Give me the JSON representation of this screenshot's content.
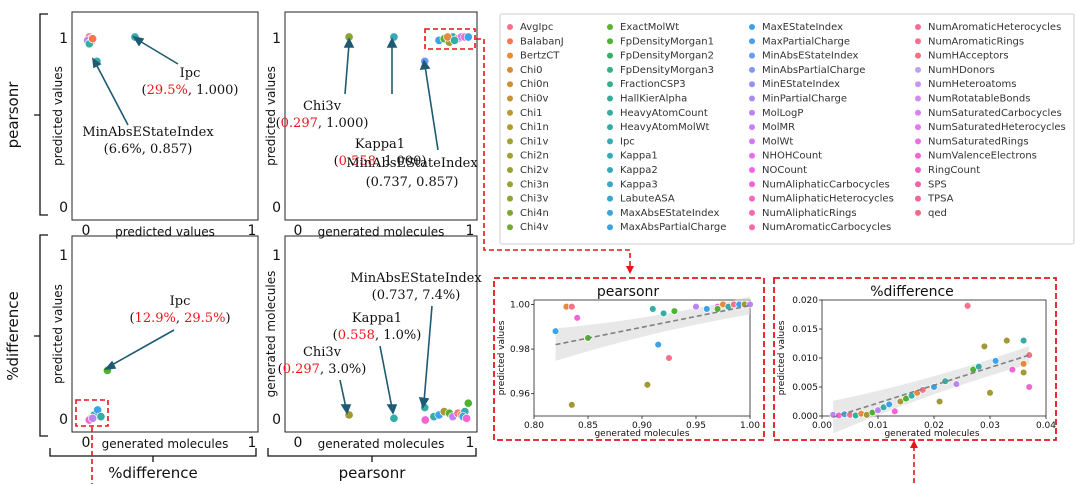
{
  "groups": {
    "row1": "pearsonr",
    "row2": "%difference",
    "col1": "%difference",
    "col2": "pearsonr"
  },
  "colors": {
    "pink": "#f77189",
    "coral": "#e68a3e",
    "olive": "#a39934",
    "green": "#50b131",
    "teal": "#36ada4",
    "blue": "#3ba3ec",
    "purple": "#bb83f4",
    "magenta": "#f564d4",
    "dark_arrow": "#1e5b73",
    "highlight": "#e8141b"
  },
  "legend": {
    "items": [
      {
        "label": "AvgIpc",
        "color": "#f77189"
      },
      {
        "label": "BalabanJ",
        "color": "#f7754f"
      },
      {
        "label": "BertzCT",
        "color": "#e78d31"
      },
      {
        "label": "Chi0",
        "color": "#dc8932"
      },
      {
        "label": "Chi0n",
        "color": "#d08f32"
      },
      {
        "label": "Chi0v",
        "color": "#c59433"
      },
      {
        "label": "Chi1",
        "color": "#bb9832"
      },
      {
        "label": "Chi1n",
        "color": "#b19c32"
      },
      {
        "label": "Chi1v",
        "color": "#a69f32"
      },
      {
        "label": "Chi2n",
        "color": "#a69f32"
      },
      {
        "label": "Chi2v",
        "color": "#9ba131"
      },
      {
        "label": "Chi3n",
        "color": "#9aa231"
      },
      {
        "label": "Chi3v",
        "color": "#8ea531"
      },
      {
        "label": "Chi4n",
        "color": "#80a831"
      },
      {
        "label": "Chi4v",
        "color": "#6fac31"
      },
      {
        "label": "ExactMolWt",
        "color": "#5cb231"
      },
      {
        "label": "FpDensityMorgan1",
        "color": "#4cb331"
      },
      {
        "label": "FpDensityMorgan2",
        "color": "#32b166"
      },
      {
        "label": "FpDensityMorgan3",
        "color": "#34af7d"
      },
      {
        "label": "FractionCSP3",
        "color": "#35ae8c"
      },
      {
        "label": "HallKierAlpha",
        "color": "#35ad96"
      },
      {
        "label": "HeavyAtomCount",
        "color": "#36ac9f"
      },
      {
        "label": "HeavyAtomMolWt",
        "color": "#36aba7"
      },
      {
        "label": "Ipc",
        "color": "#37abaf"
      },
      {
        "label": "Kappa1",
        "color": "#37aab6"
      },
      {
        "label": "Kappa2",
        "color": "#38a9be"
      },
      {
        "label": "Kappa3",
        "color": "#38a8c5"
      },
      {
        "label": "LabuteASA",
        "color": "#39a7cc"
      },
      {
        "label": "MaxAbsEStateIndex",
        "color": "#3aa5d5"
      },
      {
        "label": "MaxAbsPartialCharge",
        "color": "#3ba3df"
      },
      {
        "label": "MaxEStateIndex",
        "color": "#3ca1e8"
      },
      {
        "label": "MaxPartialCharge",
        "color": "#4a9ff2"
      },
      {
        "label": "MinAbsEStateIndex",
        "color": "#6a9bf4"
      },
      {
        "label": "MinAbsPartialCharge",
        "color": "#8297f4"
      },
      {
        "label": "MinEStateIndex",
        "color": "#9692f4"
      },
      {
        "label": "MinPartialCharge",
        "color": "#a78cf4"
      },
      {
        "label": "MolLogP",
        "color": "#b886f4"
      },
      {
        "label": "MolMR",
        "color": "#c880f4"
      },
      {
        "label": "MolWt",
        "color": "#d879f3"
      },
      {
        "label": "NHOHCount",
        "color": "#e670f2"
      },
      {
        "label": "NOCount",
        "color": "#f366e7"
      },
      {
        "label": "NumAliphaticCarbocycles",
        "color": "#f564d4"
      },
      {
        "label": "NumAliphaticHeterocycles",
        "color": "#f566c3"
      },
      {
        "label": "NumAliphaticRings",
        "color": "#f668b4"
      },
      {
        "label": "NumAromaticCarbocycles",
        "color": "#f66aa6"
      },
      {
        "label": "NumAromaticHeterocycles",
        "color": "#f66c99"
      },
      {
        "label": "NumAromaticRings",
        "color": "#f66e8c"
      },
      {
        "label": "NumHAcceptors",
        "color": "#f77080"
      },
      {
        "label": "NumHDonors",
        "color": "#c0a0f4"
      },
      {
        "label": "NumHeteroatoms",
        "color": "#c896f4"
      },
      {
        "label": "NumRotatableBonds",
        "color": "#d08cf4"
      },
      {
        "label": "NumSaturatedCarbocycles",
        "color": "#d982f4"
      },
      {
        "label": "NumSaturatedHeterocycles",
        "color": "#e278f2"
      },
      {
        "label": "NumSaturatedRings",
        "color": "#ea6ee7"
      },
      {
        "label": "NumValenceElectrons",
        "color": "#f064d6"
      },
      {
        "label": "RingCount",
        "color": "#f35fc3"
      },
      {
        "label": "SPS",
        "color": "#f55fae"
      },
      {
        "label": "TPSA",
        "color": "#f6619a"
      },
      {
        "label": "qed",
        "color": "#f76785"
      }
    ]
  },
  "chart_data": [
    {
      "id": "p1",
      "type": "scatter",
      "xlabel": "predicted values",
      "ylabel": "predicted values",
      "xlim": [
        0,
        1
      ],
      "ylim": [
        0,
        1
      ],
      "xticks": [
        "0",
        "1"
      ],
      "yticks": [
        "0",
        "1"
      ],
      "points": [
        {
          "x": 0.02,
          "y": 1.0,
          "color": "#f77189"
        },
        {
          "x": 0.03,
          "y": 0.99,
          "color": "#f564d4"
        },
        {
          "x": 0.01,
          "y": 0.98,
          "color": "#bb83f4"
        },
        {
          "x": 0.03,
          "y": 0.97,
          "color": "#a39934"
        },
        {
          "x": 0.02,
          "y": 0.96,
          "color": "#36ada4"
        },
        {
          "x": 0.04,
          "y": 0.99,
          "color": "#f7754f"
        },
        {
          "x": 0.295,
          "y": 1.0,
          "color": "#37abaf"
        },
        {
          "x": 0.066,
          "y": 0.857,
          "color": "#36ada4"
        }
      ],
      "annotations": [
        {
          "name": "Ipc",
          "value_parts": [
            "(",
            "29.5%",
            ", 1.000)"
          ]
        },
        {
          "name": "MinAbsEStateIndex",
          "value_parts": [
            "(6.6%, 0.857)"
          ]
        }
      ]
    },
    {
      "id": "p2",
      "type": "scatter",
      "xlabel": "generated molecules",
      "ylabel": "predicted values",
      "xlim": [
        0,
        1
      ],
      "ylim": [
        0,
        1
      ],
      "xticks": [
        "0",
        "1"
      ],
      "yticks": [
        "0",
        "1"
      ],
      "points": [
        {
          "x": 0.297,
          "y": 1.0,
          "color": "#8ea531"
        },
        {
          "x": 0.558,
          "y": 1.0,
          "color": "#37aab6"
        },
        {
          "x": 0.737,
          "y": 0.857,
          "color": "#6a9bf4"
        },
        {
          "x": 0.82,
          "y": 0.98,
          "color": "#3ba3ec"
        },
        {
          "x": 0.85,
          "y": 0.99,
          "color": "#50b131"
        },
        {
          "x": 0.88,
          "y": 0.97,
          "color": "#a39934"
        },
        {
          "x": 0.9,
          "y": 1.0,
          "color": "#36ada4"
        },
        {
          "x": 0.93,
          "y": 0.99,
          "color": "#f77189"
        },
        {
          "x": 0.95,
          "y": 1.0,
          "color": "#bb83f4"
        },
        {
          "x": 0.97,
          "y": 1.0,
          "color": "#f564d4"
        },
        {
          "x": 0.99,
          "y": 1.0,
          "color": "#3ba3ec"
        },
        {
          "x": 0.87,
          "y": 1.0,
          "color": "#e68a3e"
        },
        {
          "x": 0.91,
          "y": 0.98,
          "color": "#36ada4"
        }
      ],
      "annotations": [
        {
          "name": "Chi3v",
          "value_parts": [
            "(",
            "0.297",
            ", 1.000)"
          ]
        },
        {
          "name": "Kappa1",
          "value_parts": [
            "(",
            "0.558",
            ", 1.000)"
          ]
        },
        {
          "name": "MinAbsEStateIndex",
          "value_parts": [
            "(0.737, 0.857)"
          ]
        }
      ]
    },
    {
      "id": "p3",
      "type": "scatter",
      "xlabel": "generated molecules",
      "ylabel": "predicted values",
      "xlim": [
        0,
        1
      ],
      "ylim": [
        0,
        1
      ],
      "xticks": [
        "0",
        "1"
      ],
      "yticks": [
        "0",
        "1"
      ],
      "points": [
        {
          "x": 0.129,
          "y": 0.295,
          "color": "#50b131"
        },
        {
          "x": 0.05,
          "y": 0.03,
          "color": "#36ada4"
        },
        {
          "x": 0.07,
          "y": 0.06,
          "color": "#3ba3ec"
        },
        {
          "x": 0.03,
          "y": 0.01,
          "color": "#f77189"
        },
        {
          "x": 0.02,
          "y": 0.0,
          "color": "#f564d4"
        },
        {
          "x": 0.09,
          "y": 0.02,
          "color": "#36ada4"
        },
        {
          "x": 0.04,
          "y": 0.01,
          "color": "#bb83f4"
        }
      ],
      "annotations": [
        {
          "name": "Ipc",
          "value_parts": [
            "(",
            "12.9%",
            ", ",
            "29.5%",
            ")"
          ]
        }
      ]
    },
    {
      "id": "p4",
      "type": "scatter",
      "xlabel": "generated molecules",
      "ylabel": "generated molecules",
      "xlim": [
        0,
        1
      ],
      "ylim": [
        0,
        1
      ],
      "xticks": [
        "0",
        "1"
      ],
      "yticks": [
        "0",
        "1"
      ],
      "points": [
        {
          "x": 0.297,
          "y": 0.03,
          "color": "#a39934"
        },
        {
          "x": 0.558,
          "y": 0.01,
          "color": "#36ada4"
        },
        {
          "x": 0.737,
          "y": 0.074,
          "color": "#36ada4"
        },
        {
          "x": 0.74,
          "y": 0.0,
          "color": "#f564d4"
        },
        {
          "x": 0.79,
          "y": 0.02,
          "color": "#36ada4"
        },
        {
          "x": 0.82,
          "y": 0.03,
          "color": "#3ba3ec"
        },
        {
          "x": 0.85,
          "y": 0.05,
          "color": "#a39934"
        },
        {
          "x": 0.88,
          "y": 0.04,
          "color": "#50b131"
        },
        {
          "x": 0.9,
          "y": 0.02,
          "color": "#bb83f4"
        },
        {
          "x": 0.93,
          "y": 0.04,
          "color": "#f77189"
        },
        {
          "x": 0.95,
          "y": 0.03,
          "color": "#e68a3e"
        },
        {
          "x": 0.97,
          "y": 0.05,
          "color": "#36ada4"
        },
        {
          "x": 0.99,
          "y": 0.1,
          "color": "#50b131"
        },
        {
          "x": 0.96,
          "y": 0.02,
          "color": "#3ba3ec"
        },
        {
          "x": 0.98,
          "y": 0.01,
          "color": "#f564d4"
        }
      ],
      "annotations": [
        {
          "name": "MinAbsEStateIndex",
          "value_parts": [
            "(0.737, 7.4%)"
          ]
        },
        {
          "name": "Kappa1",
          "value_parts": [
            "(",
            "0.558",
            ", 1.0%)"
          ]
        },
        {
          "name": "Chi3v",
          "value_parts": [
            "(",
            "0.297",
            ", 3.0%)"
          ]
        }
      ]
    },
    {
      "id": "zoom_pearsonr",
      "type": "scatter",
      "title": "pearsonr",
      "xlabel": "generated molecules",
      "ylabel": "predicted values",
      "xlim": [
        0.8,
        1.0
      ],
      "ylim": [
        0.95,
        1.002
      ],
      "xticks": [
        "0.80",
        "0.85",
        "0.90",
        "0.95",
        "1.00"
      ],
      "yticks": [
        "0.96",
        "0.98",
        "1.00"
      ],
      "fit": {
        "x0": 0.82,
        "y0": 0.982,
        "x1": 1.0,
        "y1": 0.9995
      },
      "points": [
        {
          "x": 0.82,
          "y": 0.988,
          "color": "#3ba3ec"
        },
        {
          "x": 0.83,
          "y": 0.999,
          "color": "#e68a3e"
        },
        {
          "x": 0.835,
          "y": 0.999,
          "color": "#f77189"
        },
        {
          "x": 0.84,
          "y": 0.994,
          "color": "#f564d4"
        },
        {
          "x": 0.835,
          "y": 0.955,
          "color": "#a39934"
        },
        {
          "x": 0.85,
          "y": 0.985,
          "color": "#50b131"
        },
        {
          "x": 0.905,
          "y": 0.964,
          "color": "#a39934"
        },
        {
          "x": 0.91,
          "y": 0.998,
          "color": "#36ada4"
        },
        {
          "x": 0.915,
          "y": 0.982,
          "color": "#3ba3ec"
        },
        {
          "x": 0.925,
          "y": 0.976,
          "color": "#f77189"
        },
        {
          "x": 0.92,
          "y": 0.996,
          "color": "#36ada4"
        },
        {
          "x": 0.93,
          "y": 0.997,
          "color": "#50b131"
        },
        {
          "x": 0.95,
          "y": 0.999,
          "color": "#bb83f4"
        },
        {
          "x": 0.96,
          "y": 0.998,
          "color": "#3ba3ec"
        },
        {
          "x": 0.97,
          "y": 0.999,
          "color": "#f564d4"
        },
        {
          "x": 0.975,
          "y": 1.0,
          "color": "#e68a3e"
        },
        {
          "x": 0.98,
          "y": 0.999,
          "color": "#36ada4"
        },
        {
          "x": 0.985,
          "y": 1.0,
          "color": "#f77189"
        },
        {
          "x": 0.99,
          "y": 1.0,
          "color": "#3ba3ec"
        },
        {
          "x": 0.995,
          "y": 1.0,
          "color": "#a39934"
        },
        {
          "x": 1.0,
          "y": 1.0,
          "color": "#bb83f4"
        },
        {
          "x": 0.97,
          "y": 0.998,
          "color": "#50b131"
        }
      ]
    },
    {
      "id": "zoom_difference",
      "type": "scatter",
      "title": "%difference",
      "xlabel": "generated molecules",
      "ylabel": "predicted values",
      "xlim": [
        0.0,
        0.04
      ],
      "ylim": [
        0.0,
        0.02
      ],
      "xticks": [
        "0.00",
        "0.01",
        "0.02",
        "0.03",
        "0.04"
      ],
      "yticks": [
        "0.000",
        "0.005",
        "0.010",
        "0.015",
        "0.020"
      ],
      "fit": {
        "x0": 0.002,
        "y0": -0.0002,
        "x1": 0.037,
        "y1": 0.0105
      },
      "points": [
        {
          "x": 0.002,
          "y": 0.0002,
          "color": "#bb83f4"
        },
        {
          "x": 0.003,
          "y": 0.0001,
          "color": "#f564d4"
        },
        {
          "x": 0.004,
          "y": 0.0003,
          "color": "#3ba3ec"
        },
        {
          "x": 0.005,
          "y": 0.0002,
          "color": "#f77189"
        },
        {
          "x": 0.006,
          "y": 0.0001,
          "color": "#36ada4"
        },
        {
          "x": 0.007,
          "y": 0.0004,
          "color": "#e68a3e"
        },
        {
          "x": 0.008,
          "y": 0.0002,
          "color": "#a39934"
        },
        {
          "x": 0.009,
          "y": 0.0006,
          "color": "#50b131"
        },
        {
          "x": 0.01,
          "y": 0.001,
          "color": "#bb83f4"
        },
        {
          "x": 0.011,
          "y": 0.0015,
          "color": "#36ada4"
        },
        {
          "x": 0.012,
          "y": 0.002,
          "color": "#3ba3ec"
        },
        {
          "x": 0.013,
          "y": 0.0008,
          "color": "#f564d4"
        },
        {
          "x": 0.014,
          "y": 0.0025,
          "color": "#a39934"
        },
        {
          "x": 0.015,
          "y": 0.003,
          "color": "#50b131"
        },
        {
          "x": 0.016,
          "y": 0.0035,
          "color": "#36ada4"
        },
        {
          "x": 0.017,
          "y": 0.004,
          "color": "#e68a3e"
        },
        {
          "x": 0.018,
          "y": 0.0045,
          "color": "#f77189"
        },
        {
          "x": 0.02,
          "y": 0.005,
          "color": "#3ba3ec"
        },
        {
          "x": 0.021,
          "y": 0.0025,
          "color": "#a39934"
        },
        {
          "x": 0.022,
          "y": 0.006,
          "color": "#36ada4"
        },
        {
          "x": 0.024,
          "y": 0.0055,
          "color": "#bb83f4"
        },
        {
          "x": 0.026,
          "y": 0.019,
          "color": "#f77189"
        },
        {
          "x": 0.027,
          "y": 0.008,
          "color": "#50b131"
        },
        {
          "x": 0.028,
          "y": 0.0085,
          "color": "#36ada4"
        },
        {
          "x": 0.029,
          "y": 0.012,
          "color": "#a39934"
        },
        {
          "x": 0.03,
          "y": 0.004,
          "color": "#a39934"
        },
        {
          "x": 0.031,
          "y": 0.0095,
          "color": "#3ba3ec"
        },
        {
          "x": 0.033,
          "y": 0.013,
          "color": "#a39934"
        },
        {
          "x": 0.034,
          "y": 0.008,
          "color": "#f564d4"
        },
        {
          "x": 0.036,
          "y": 0.013,
          "color": "#36ada4"
        },
        {
          "x": 0.036,
          "y": 0.009,
          "color": "#e68a3e"
        },
        {
          "x": 0.036,
          "y": 0.0075,
          "color": "#a39934"
        },
        {
          "x": 0.037,
          "y": 0.005,
          "color": "#f564d4"
        },
        {
          "x": 0.037,
          "y": 0.0105,
          "color": "#f77189"
        }
      ]
    }
  ]
}
